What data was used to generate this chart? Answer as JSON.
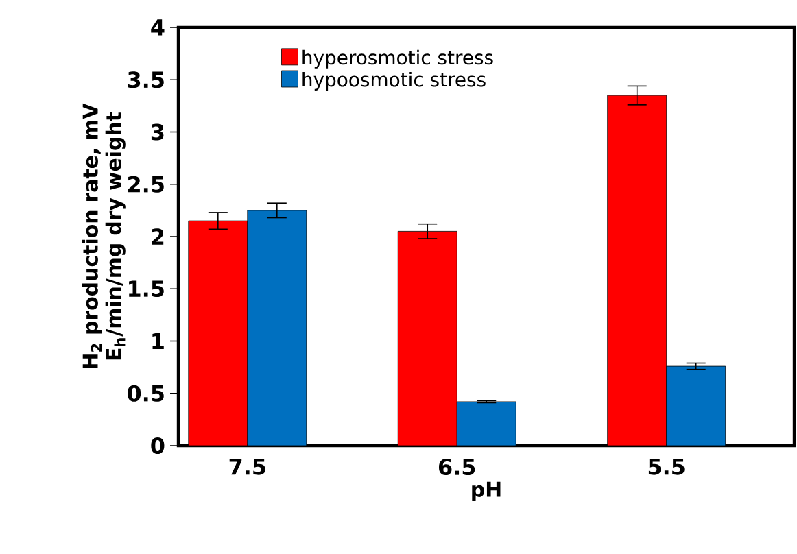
{
  "chart_data": {
    "type": "bar",
    "xlabel": "pH",
    "ylabel": "H$_{2}$ production rate, mV E$_{h}$/min/mg dry weight",
    "categories": [
      "7.5",
      "6.5",
      "5.5"
    ],
    "series": [
      {
        "name": "hyperosmotic stress",
        "color": "#ff0000",
        "values": [
          2.15,
          2.05,
          3.35
        ],
        "errors": [
          0.08,
          0.07,
          0.09
        ]
      },
      {
        "name": "hypoosmotic stress",
        "color": "#0070c0",
        "values": [
          2.25,
          0.42,
          0.76
        ],
        "errors": [
          0.07,
          0.01,
          0.03
        ]
      }
    ],
    "ylim": [
      0,
      4
    ],
    "yticks": [
      0,
      0.5,
      1,
      1.5,
      2,
      2.5,
      3,
      3.5,
      4
    ],
    "legend": "top left",
    "grid": false
  }
}
